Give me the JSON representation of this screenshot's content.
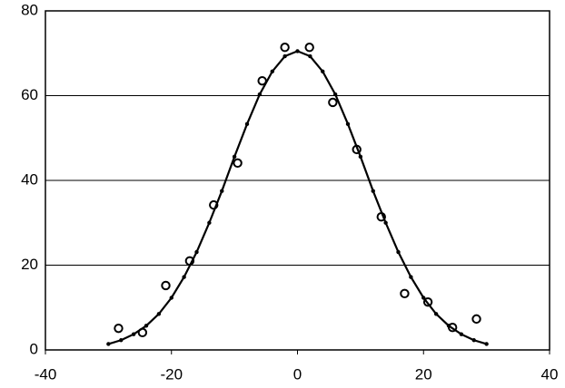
{
  "chart_data": {
    "type": "scatter",
    "xlim": [
      -40,
      40
    ],
    "xticks": [
      -40,
      -20,
      0,
      20,
      40
    ],
    "ylim": [
      0,
      80
    ],
    "yticks": [
      0,
      20,
      40,
      60,
      80
    ],
    "grid": true,
    "series": [
      {
        "style": "open-circles",
        "color": "#000000",
        "x": [
          -28.4,
          -24.6,
          -20.9,
          -17.1,
          -13.3,
          -9.5,
          -5.6,
          -2.0,
          1.9,
          5.6,
          9.4,
          13.3,
          17.0,
          20.7,
          24.6,
          28.4
        ],
        "values": [
          5.1,
          4.1,
          15.2,
          21,
          34.2,
          44.1,
          63.5,
          71.4,
          71.4,
          58.4,
          47.3,
          31.4,
          13.3,
          11.3,
          5.3,
          7.3
        ]
      },
      {
        "style": "line-dots",
        "color": "#000000",
        "x": [
          -30,
          -28,
          -26,
          -24,
          -22,
          -20,
          -18,
          -16,
          -14,
          -12,
          -10,
          -8,
          -6,
          -4,
          -2,
          0,
          2,
          4,
          6,
          8,
          10,
          12,
          14,
          16,
          18,
          20,
          22,
          24,
          26,
          28,
          30
        ],
        "values": [
          1.4,
          2.3,
          3.7,
          5.7,
          8.5,
          12.3,
          17.2,
          23.1,
          30.0,
          37.5,
          45.6,
          53.3,
          60.3,
          65.7,
          69.3,
          70.5,
          69.3,
          65.7,
          60.3,
          53.3,
          45.6,
          37.5,
          30.0,
          23.1,
          17.2,
          12.3,
          8.5,
          5.7,
          3.7,
          2.3,
          1.4
        ]
      }
    ]
  }
}
